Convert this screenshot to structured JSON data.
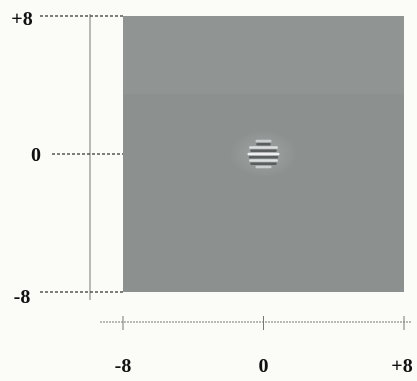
{
  "figure": {
    "colors": {
      "background": "#fbfbf7",
      "plot_fill": "#8c9190",
      "plot_band": "#939897",
      "fringe_light": "#f2f4f3",
      "fringe_dark": "#4f5453",
      "axis_line": "#777777",
      "tick_text": "#111111"
    },
    "x_axis": {
      "range": [
        -8,
        8
      ],
      "ticks": [
        {
          "value": -8,
          "label": "-8"
        },
        {
          "value": 0,
          "label": "0"
        },
        {
          "value": 8,
          "label": "+8"
        }
      ]
    },
    "y_axis": {
      "range": [
        -8,
        8
      ],
      "ticks": [
        {
          "value": 8,
          "label": "+8"
        },
        {
          "value": 0,
          "label": "0"
        },
        {
          "value": -8,
          "label": "-8"
        }
      ]
    },
    "pattern": {
      "center": [
        0,
        0
      ],
      "fringe_count": 5,
      "orientation": "horizontal"
    }
  }
}
